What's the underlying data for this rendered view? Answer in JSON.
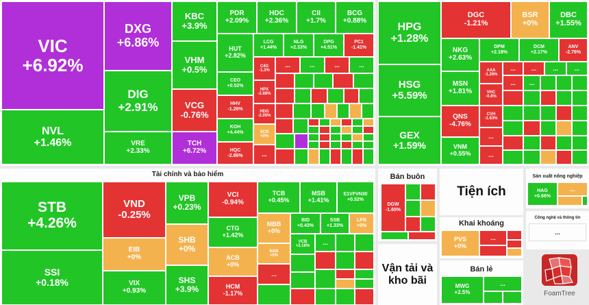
{
  "colors": {
    "up": "#22c526",
    "down": "#e43333",
    "flat": "#f4b24e",
    "ceiling": "#b12fd8"
  },
  "sectors": {
    "finance": "Tài chính và bảo hiểm",
    "wholesale": "Bán buôn",
    "utilities": "Tiện ích",
    "mining": "Khai khoáng",
    "transport": "Vận tải và kho bãi",
    "retail": "Bán lẻ",
    "agri": "Sản xuất nông nghiệp",
    "tech": "Công nghệ và thông tin"
  },
  "tickers": {
    "VIC": {
      "t": "VIC",
      "c": "+6.92%"
    },
    "DXG": {
      "t": "DXG",
      "c": "+6.86%"
    },
    "DIG": {
      "t": "DIG",
      "c": "+2.91%"
    },
    "NVL": {
      "t": "NVL",
      "c": "+1.46%"
    },
    "VRE": {
      "t": "VRE",
      "c": "+2.33%"
    },
    "KBC": {
      "t": "KBC",
      "c": "+3.9%"
    },
    "VHM": {
      "t": "VHM",
      "c": "+0.5%"
    },
    "VCG": {
      "t": "VCG",
      "c": "-0.76%"
    },
    "TCH": {
      "t": "TCH",
      "c": "+6.72%"
    },
    "PDR": {
      "t": "PDR",
      "c": "+2.09%"
    },
    "HDC": {
      "t": "HDC",
      "c": "+2.36%"
    },
    "CII": {
      "t": "CII",
      "c": "+1.7%"
    },
    "BCG": {
      "t": "BCG",
      "c": "+0.88%"
    },
    "HUT": {
      "t": "HUT",
      "c": "+2.82%"
    },
    "LCG": {
      "t": "LCG",
      "c": "+1.44%"
    },
    "NLG": {
      "t": "NLG",
      "c": "+2.33%"
    },
    "DPG": {
      "t": "DPG",
      "c": "+4.51%"
    },
    "PC1": {
      "t": "PC1",
      "c": "-1.41%"
    },
    "CEO": {
      "t": "CEO",
      "c": "+0.52%"
    },
    "C4G": {
      "t": "C4G",
      "c": "-1.3%"
    },
    "HHV": {
      "t": "HHV",
      "c": "-1.26%"
    },
    "HPX": {
      "t": "HPX",
      "c": "-2.88%"
    },
    "HDG": {
      "t": "HDG",
      "c": "-2.05%"
    },
    "KOH": {
      "t": "KOH",
      "c": "+4.44%"
    },
    "SCR": {
      "t": "SCR",
      "c": "+0%"
    },
    "HQC": {
      "t": "HQC",
      "c": "-2.86%"
    },
    "HPG": {
      "t": "HPG",
      "c": "+1.28%"
    },
    "HSG": {
      "t": "HSG",
      "c": "+5.59%"
    },
    "GEX": {
      "t": "GEX",
      "c": "+1.59%"
    },
    "DGC": {
      "t": "DGC",
      "c": "-1.21%"
    },
    "BSR": {
      "t": "BSR",
      "c": "+0%"
    },
    "DBC": {
      "t": "DBC",
      "c": "+1.55%"
    },
    "NKG": {
      "t": "NKG",
      "c": "+2.63%"
    },
    "DPM": {
      "t": "DPM",
      "c": "+2.18%"
    },
    "DCM": {
      "t": "DCM",
      "c": "+2.17%"
    },
    "ANV": {
      "t": "ANV",
      "c": "-2.76%"
    },
    "MSN": {
      "t": "MSN",
      "c": "+1.81%"
    },
    "AAA": {
      "t": "AAA",
      "c": "-1.26%"
    },
    "VHC": {
      "t": "VHC",
      "c": "-0.8%"
    },
    "QNS": {
      "t": "QNS",
      "c": "-4.76%"
    },
    "CVH": {
      "t": "CVH",
      "c": "-1.63%"
    },
    "VNM": {
      "t": "VNM",
      "c": "+0.55%"
    },
    "STB": {
      "t": "STB",
      "c": "+4.26%"
    },
    "SSI": {
      "t": "SSI",
      "c": "+0.18%"
    },
    "VND": {
      "t": "VND",
      "c": "-0.25%"
    },
    "EIB": {
      "t": "EIB",
      "c": "+0%"
    },
    "VIX": {
      "t": "VIX",
      "c": "+0.93%"
    },
    "VPB": {
      "t": "VPB",
      "c": "+0.23%"
    },
    "SHB": {
      "t": "SHB",
      "c": "+0%"
    },
    "SHS": {
      "t": "SHS",
      "c": "+3.9%"
    },
    "VCI": {
      "t": "VCI",
      "c": "-0.94%"
    },
    "CTG": {
      "t": "CTG",
      "c": "+1.42%"
    },
    "ACB": {
      "t": "ACB",
      "c": "+0%"
    },
    "HCM": {
      "t": "HCM",
      "c": "-1.17%"
    },
    "TCB": {
      "t": "TCB",
      "c": "+0.45%"
    },
    "MSB": {
      "t": "MSB",
      "c": "+1.41%"
    },
    "E1VFVN30": {
      "t": "E1VFVN30",
      "c": "+0.52%"
    },
    "MBB": {
      "t": "MBB",
      "c": "+0%"
    },
    "BID": {
      "t": "BID",
      "c": "+0.43%"
    },
    "SSB": {
      "t": "SSB",
      "c": "+1.33%"
    },
    "LPB": {
      "t": "LPB",
      "c": "+0%"
    },
    "VCB": {
      "t": "VCB",
      "c": "+2.16%"
    },
    "NAB": {
      "t": "NAB",
      "c": "+0%"
    },
    "DGW": {
      "t": "DGW",
      "c": "-1.65%"
    },
    "PVS": {
      "t": "PVS",
      "c": "+0%"
    },
    "MWG": {
      "t": "MWG",
      "c": "+2.5%"
    },
    "HAG": {
      "t": "HAG",
      "c": "+0.66%"
    }
  },
  "more": "...",
  "logo": "FoamTree"
}
